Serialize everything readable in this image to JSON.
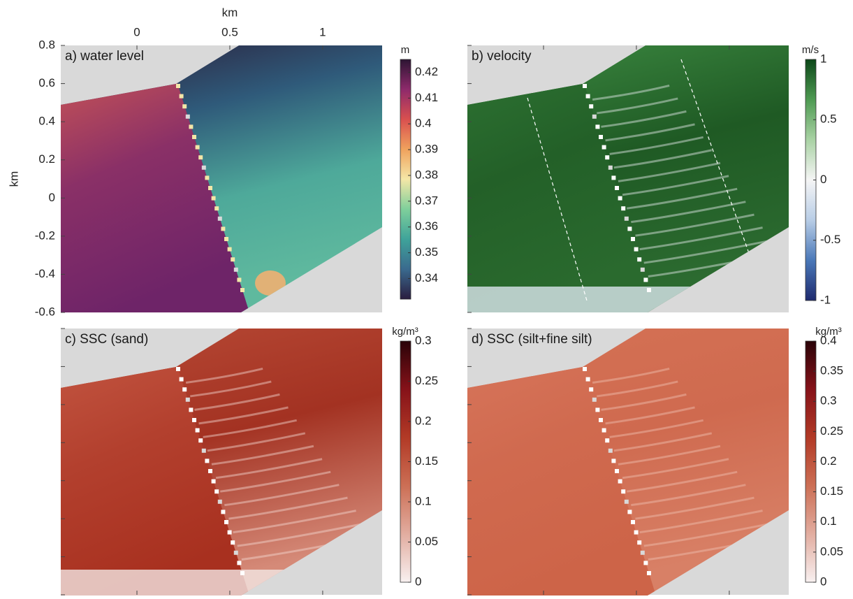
{
  "chart_data": [
    {
      "type": "heatmap",
      "title": "a) water level",
      "xlabel": "km",
      "ylabel": "km",
      "xlim": [
        -0.41,
        1.32
      ],
      "ylim": [
        -0.6,
        0.8
      ],
      "xticks": [
        0,
        0.5,
        1
      ],
      "yticks": [
        0.8,
        0.6,
        0.4,
        0.2,
        0,
        -0.2,
        -0.4,
        -0.6
      ],
      "colorbar": {
        "label": "m",
        "lim": [
          0.332,
          0.425
        ],
        "ticks": [
          0.34,
          0.35,
          0.36,
          0.37,
          0.38,
          0.39,
          0.4,
          0.41,
          0.42
        ],
        "colors": [
          "#2a1d3f",
          "#3a6a8e",
          "#3fa39a",
          "#7fcf9b",
          "#f4e7a7",
          "#f0a25d",
          "#d9504f",
          "#8e2a6b",
          "#2d1533"
        ]
      }
    },
    {
      "type": "heatmap",
      "title": "b) velocity",
      "xlim": [
        -0.41,
        1.32
      ],
      "ylim": [
        -0.6,
        0.8
      ],
      "colorbar": {
        "label": "m/s",
        "lim": [
          -1,
          1
        ],
        "ticks": [
          -1,
          -0.5,
          0,
          0.5,
          1
        ],
        "colors": [
          "#1e2a6e",
          "#4a78b8",
          "#b8cde6",
          "#f5f5f5",
          "#a9d2a4",
          "#4e9a52",
          "#0c4718"
        ]
      }
    },
    {
      "type": "heatmap",
      "title": "c) SSC (sand)",
      "xlim": [
        -0.41,
        1.32
      ],
      "ylim": [
        -0.6,
        0.8
      ],
      "colorbar": {
        "label": "kg/m³",
        "lim": [
          0,
          0.3
        ],
        "ticks": [
          0,
          0.05,
          0.1,
          0.15,
          0.2,
          0.25,
          0.3
        ],
        "colors": [
          "#f8f0f0",
          "#e2ada0",
          "#cc6f55",
          "#b23a26",
          "#861219",
          "#2a0308"
        ]
      }
    },
    {
      "type": "heatmap",
      "title": "d) SSC (silt+fine silt)",
      "xlim": [
        -0.41,
        1.32
      ],
      "ylim": [
        -0.6,
        0.8
      ],
      "colorbar": {
        "label": "kg/m³",
        "lim": [
          0,
          0.4
        ],
        "ticks": [
          0,
          0.05,
          0.1,
          0.15,
          0.2,
          0.25,
          0.3,
          0.35,
          0.4
        ],
        "colors": [
          "#f8f0f0",
          "#e2ada0",
          "#cc6f55",
          "#b23a26",
          "#861219",
          "#2a0308"
        ]
      }
    }
  ]
}
